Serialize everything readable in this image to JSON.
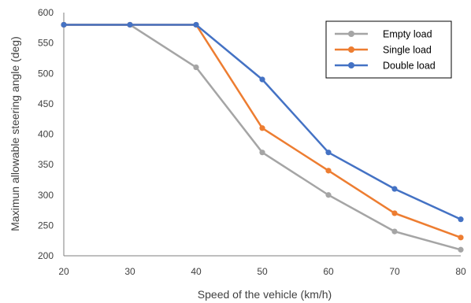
{
  "chart_data": {
    "type": "line",
    "title": "",
    "xlabel": "Speed of the vehicle (km/h)",
    "ylabel": "Maximun allowable steering angle (deg)",
    "x": [
      20,
      30,
      40,
      50,
      60,
      70,
      80
    ],
    "xlim": [
      20,
      80
    ],
    "ylim": [
      200,
      600
    ],
    "x_ticks": [
      "20",
      "30",
      "40",
      "50",
      "60",
      "70",
      "80"
    ],
    "y_ticks": [
      "200",
      "250",
      "300",
      "350",
      "400",
      "450",
      "500",
      "550",
      "600"
    ],
    "grid": false,
    "legend_position": "top-right",
    "series": [
      {
        "name": "Empty load",
        "color": "#a5a5a5",
        "values": [
          580,
          580,
          510,
          370,
          300,
          240,
          210
        ]
      },
      {
        "name": "Single load",
        "color": "#ed7d31",
        "values": [
          580,
          580,
          580,
          410,
          340,
          270,
          230
        ]
      },
      {
        "name": "Double load",
        "color": "#4472c4",
        "values": [
          580,
          580,
          580,
          490,
          370,
          310,
          260
        ]
      }
    ]
  }
}
